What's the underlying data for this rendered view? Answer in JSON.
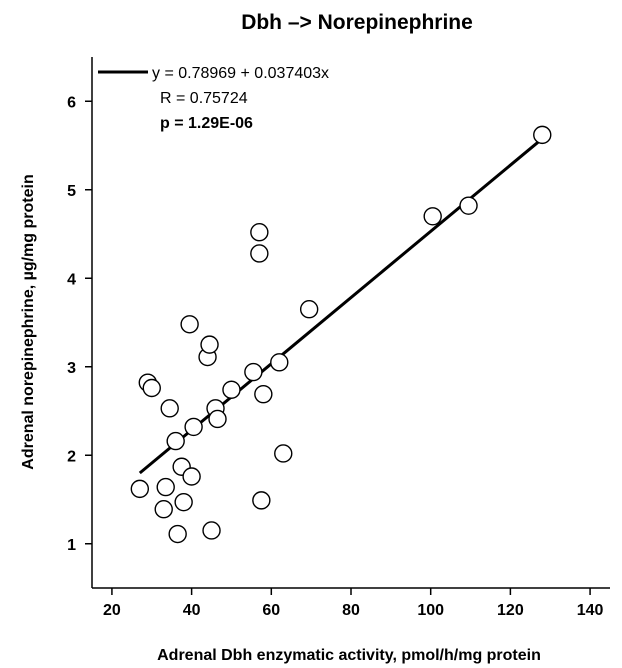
{
  "chart_data": {
    "type": "scatter",
    "title": "Dbh –> Norepinephrine",
    "xlabel": "Adrenal Dbh enzymatic activity, pmol/h/mg protein",
    "ylabel": "Adrenal norepinephrine, µg/mg protein",
    "xlim": [
      15,
      145
    ],
    "ylim": [
      0.5,
      6.5
    ],
    "xticks": [
      "20",
      "40",
      "60",
      "80",
      "100",
      "120",
      "140"
    ],
    "yticks": [
      "1",
      "2",
      "3",
      "4",
      "5",
      "6"
    ],
    "grid": false,
    "legend_position": "top-left",
    "legend": {
      "equation": "y = 0.78969 + 0.037403x",
      "r": "R = 0.75724",
      "p": "p = 1.29E-06"
    },
    "fit": {
      "intercept": 0.78969,
      "slope": 0.037403,
      "x_range": [
        27,
        128
      ]
    },
    "points": [
      {
        "x": 27.0,
        "y": 1.62
      },
      {
        "x": 29.0,
        "y": 2.82
      },
      {
        "x": 30.0,
        "y": 2.76
      },
      {
        "x": 33.0,
        "y": 1.39
      },
      {
        "x": 33.5,
        "y": 1.64
      },
      {
        "x": 34.5,
        "y": 2.53
      },
      {
        "x": 36.0,
        "y": 2.16
      },
      {
        "x": 36.5,
        "y": 1.11
      },
      {
        "x": 37.5,
        "y": 1.87
      },
      {
        "x": 38.0,
        "y": 1.47
      },
      {
        "x": 39.5,
        "y": 3.48
      },
      {
        "x": 40.0,
        "y": 1.76
      },
      {
        "x": 40.5,
        "y": 2.32
      },
      {
        "x": 44.0,
        "y": 3.11
      },
      {
        "x": 44.5,
        "y": 3.25
      },
      {
        "x": 45.0,
        "y": 1.15
      },
      {
        "x": 46.0,
        "y": 2.53
      },
      {
        "x": 46.5,
        "y": 2.41
      },
      {
        "x": 50.0,
        "y": 2.74
      },
      {
        "x": 55.5,
        "y": 2.94
      },
      {
        "x": 57.0,
        "y": 4.52
      },
      {
        "x": 57.0,
        "y": 4.28
      },
      {
        "x": 57.5,
        "y": 1.49
      },
      {
        "x": 58.0,
        "y": 2.69
      },
      {
        "x": 62.0,
        "y": 3.05
      },
      {
        "x": 63.0,
        "y": 2.02
      },
      {
        "x": 69.5,
        "y": 3.65
      },
      {
        "x": 100.5,
        "y": 4.7
      },
      {
        "x": 109.5,
        "y": 4.82
      },
      {
        "x": 128.0,
        "y": 5.62
      }
    ]
  }
}
